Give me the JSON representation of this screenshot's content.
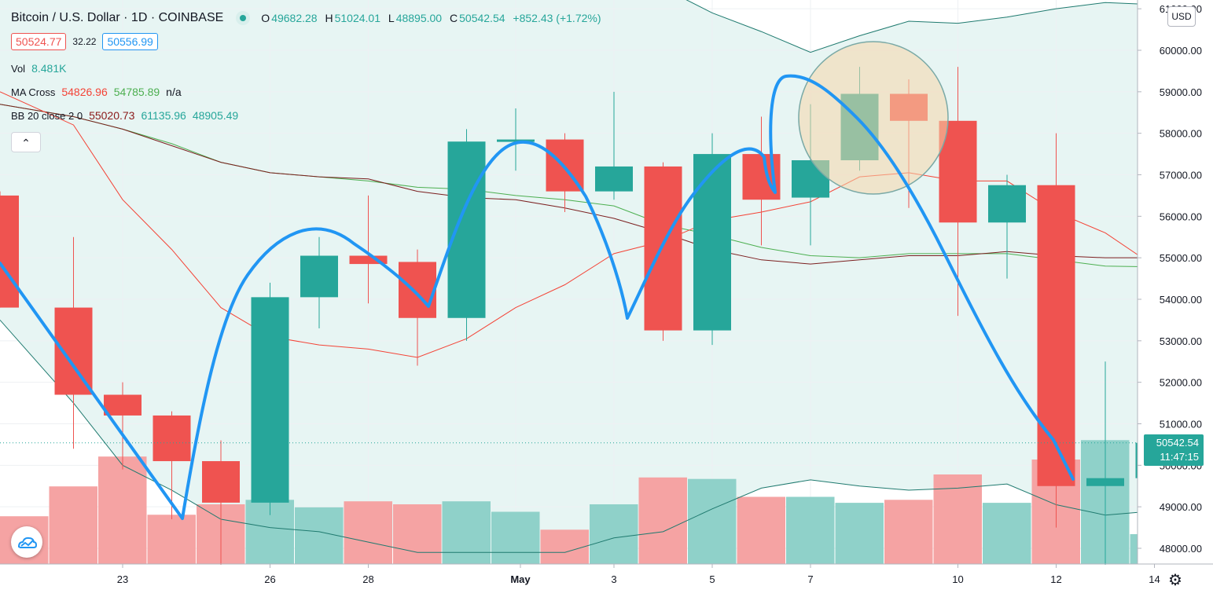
{
  "header": {
    "title": "Bitcoin / U.S. Dollar · 1D · COINBASE",
    "ohlc": {
      "o_label": "O",
      "o": "49682.28",
      "h_label": "H",
      "h": "51024.01",
      "l_label": "L",
      "l": "48895.00",
      "c_label": "C",
      "c": "50542.54",
      "change": "+852.43 (+1.72%)"
    },
    "bid": "50524.77",
    "spread": "32.22",
    "ask": "50556.99",
    "vol_label": "Vol",
    "vol": "8.481K",
    "ma_label": "MA Cross",
    "ma1": "54826.96",
    "ma2": "54785.89",
    "ma3": "n/a",
    "bb_label": "BB 20 close 2 0",
    "bb1": "55020.73",
    "bb2": "61135.96",
    "bb3": "48905.49",
    "collapse_icon": "chevron-up-icon"
  },
  "price_axis": {
    "currency": "USD",
    "ticks": [
      "48000.00",
      "49000.00",
      "50000.00",
      "51000.00",
      "52000.00",
      "53000.00",
      "54000.00",
      "55000.00",
      "56000.00",
      "57000.00",
      "58000.00",
      "59000.00",
      "60000.00",
      "61000.00"
    ],
    "last_price": "50542.54",
    "countdown": "11:47:15"
  },
  "colors": {
    "up": "#26a69a",
    "down": "#ef5350",
    "vol_up": "#8fd1c9",
    "vol_down": "#f5a3a3",
    "drawing": "#2196f3",
    "bb_fill": "#e7f5f3",
    "ma_fast": "#f44336",
    "ma_slow": "#4caf50",
    "bb_basis": "#7b1f1f"
  },
  "chart_data": {
    "type": "candlestick",
    "x_tick_labels": [
      {
        "i": 2,
        "label": "23"
      },
      {
        "i": 5,
        "label": "26"
      },
      {
        "i": 7,
        "label": "28"
      },
      {
        "i": 10,
        "label": "May"
      },
      {
        "i": 12,
        "label": "3"
      },
      {
        "i": 14,
        "label": "5"
      },
      {
        "i": 16,
        "label": "7"
      },
      {
        "i": 19,
        "label": "10"
      },
      {
        "i": 21,
        "label": "12"
      },
      {
        "i": 23,
        "label": "14"
      }
    ],
    "ylim": [
      47600,
      61300
    ],
    "candles": [
      {
        "o": 56500,
        "h": 56600,
        "l": 53800,
        "c": 53800,
        "v": 3.2
      },
      {
        "o": 53800,
        "h": 55500,
        "l": 50400,
        "c": 51700,
        "v": 5.2
      },
      {
        "o": 51700,
        "h": 52000,
        "l": 49900,
        "c": 51200,
        "v": 7.2
      },
      {
        "o": 51200,
        "h": 51300,
        "l": 48700,
        "c": 50100,
        "v": 3.3
      },
      {
        "o": 50100,
        "h": 50600,
        "l": 47500,
        "c": 49100,
        "v": 4.0
      },
      {
        "o": 49100,
        "h": 54400,
        "l": 48800,
        "c": 54050,
        "v": 4.3
      },
      {
        "o": 54050,
        "h": 55500,
        "l": 53300,
        "c": 55050,
        "v": 3.8
      },
      {
        "o": 55050,
        "h": 56500,
        "l": 53900,
        "c": 54850,
        "v": 4.2
      },
      {
        "o": 54900,
        "h": 55200,
        "l": 52400,
        "c": 53550,
        "v": 4.0
      },
      {
        "o": 53550,
        "h": 58100,
        "l": 53000,
        "c": 57800,
        "v": 4.2
      },
      {
        "o": 57800,
        "h": 58600,
        "l": 57100,
        "c": 57850,
        "v": 3.5
      },
      {
        "o": 57850,
        "h": 58000,
        "l": 56100,
        "c": 56600,
        "v": 2.3
      },
      {
        "o": 56600,
        "h": 59000,
        "l": 56400,
        "c": 57200,
        "v": 4.0
      },
      {
        "o": 57200,
        "h": 57300,
        "l": 53000,
        "c": 53250,
        "v": 5.8
      },
      {
        "o": 53250,
        "h": 58000,
        "l": 52900,
        "c": 57500,
        "v": 5.7
      },
      {
        "o": 57500,
        "h": 58400,
        "l": 55300,
        "c": 56400,
        "v": 4.5
      },
      {
        "o": 56450,
        "h": 58700,
        "l": 55300,
        "c": 57350,
        "v": 4.5
      },
      {
        "o": 57350,
        "h": 59600,
        "l": 57100,
        "c": 58950,
        "v": 4.1
      },
      {
        "o": 58950,
        "h": 59300,
        "l": 56200,
        "c": 58300,
        "v": 4.3
      },
      {
        "o": 58300,
        "h": 59600,
        "l": 53600,
        "c": 55850,
        "v": 6.0
      },
      {
        "o": 55850,
        "h": 57000,
        "l": 54500,
        "c": 56750,
        "v": 4.1
      },
      {
        "o": 56750,
        "h": 58000,
        "l": 48500,
        "c": 49500,
        "v": 7.0
      },
      {
        "o": 49500,
        "h": 52500,
        "l": 47500,
        "c": 49690,
        "v": 8.3
      },
      {
        "o": 49690,
        "h": 51024,
        "l": 48895,
        "c": 50542,
        "v": 2.0
      }
    ],
    "bb_upper": [
      62500,
      62300,
      62200,
      62100,
      62000,
      61900,
      61800,
      61700,
      61700,
      61600,
      61600,
      61600,
      61600,
      61500,
      60900,
      60450,
      59950,
      60350,
      60700,
      60650,
      60800,
      61000,
      61150,
      61100
    ],
    "bb_basis": [
      58700,
      58400,
      58100,
      57700,
      57300,
      57050,
      56950,
      56900,
      56600,
      56450,
      56400,
      56200,
      55950,
      55600,
      55200,
      54950,
      54850,
      54950,
      55050,
      55050,
      55150,
      55050,
      55000,
      55000
    ],
    "bb_lower": [
      53500,
      51500,
      50000,
      49400,
      48700,
      48500,
      48400,
      48150,
      47900,
      47900,
      47900,
      47900,
      48250,
      48400,
      48950,
      49450,
      49650,
      49500,
      49400,
      49450,
      49550,
      49050,
      48800,
      48900
    ],
    "ma_fast": [
      59000,
      58200,
      56400,
      55200,
      53800,
      53100,
      52900,
      52800,
      52600,
      53050,
      53800,
      54350,
      55100,
      55400,
      55900,
      56100,
      56350,
      56950,
      57050,
      56850,
      56850,
      56100,
      55600,
      54800
    ],
    "ma_slow": [
      58700,
      58400,
      58100,
      57750,
      57300,
      57050,
      56950,
      56850,
      56700,
      56650,
      56500,
      56400,
      56250,
      55800,
      55550,
      55250,
      55050,
      55000,
      55100,
      55100,
      55100,
      54950,
      54800,
      54780
    ],
    "vol_max": 10
  }
}
